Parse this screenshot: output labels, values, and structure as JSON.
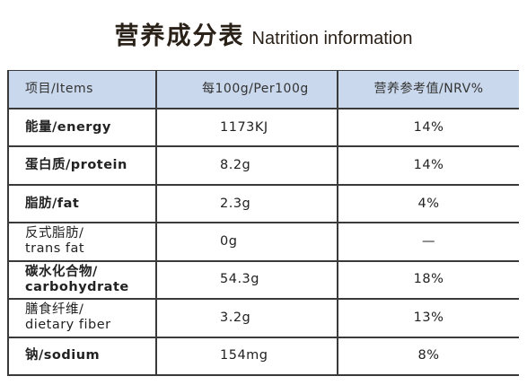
{
  "title": "营养成分表",
  "subtitle": "Natrition information",
  "table": {
    "header": [
      "项目/Items",
      "每100g/Per100g",
      "营养参考值/NRV%"
    ],
    "rows": [
      {
        "label": "能量/energy",
        "per100": "1173KJ",
        "nrv": "14%",
        "bold": true
      },
      {
        "label": "蛋白质/protein",
        "per100": "8.2g",
        "nrv": "14%",
        "bold": true
      },
      {
        "label": "脂肪/fat",
        "per100": "2.3g",
        "nrv": "4%",
        "bold": true
      },
      {
        "label": "反式脂肪/\ntrans fat",
        "per100": "0g",
        "nrv": "—",
        "bold": false
      },
      {
        "label": "碳水化合物/\ncarbohydrate",
        "per100": "54.3g",
        "nrv": "18%",
        "bold": true
      },
      {
        "label": "膳食纤维/\ndietary fiber",
        "per100": "3.2g",
        "nrv": "13%",
        "bold": false
      },
      {
        "label": "钠/sodium",
        "per100": "154mg",
        "nrv": "8%",
        "bold": true
      }
    ]
  }
}
